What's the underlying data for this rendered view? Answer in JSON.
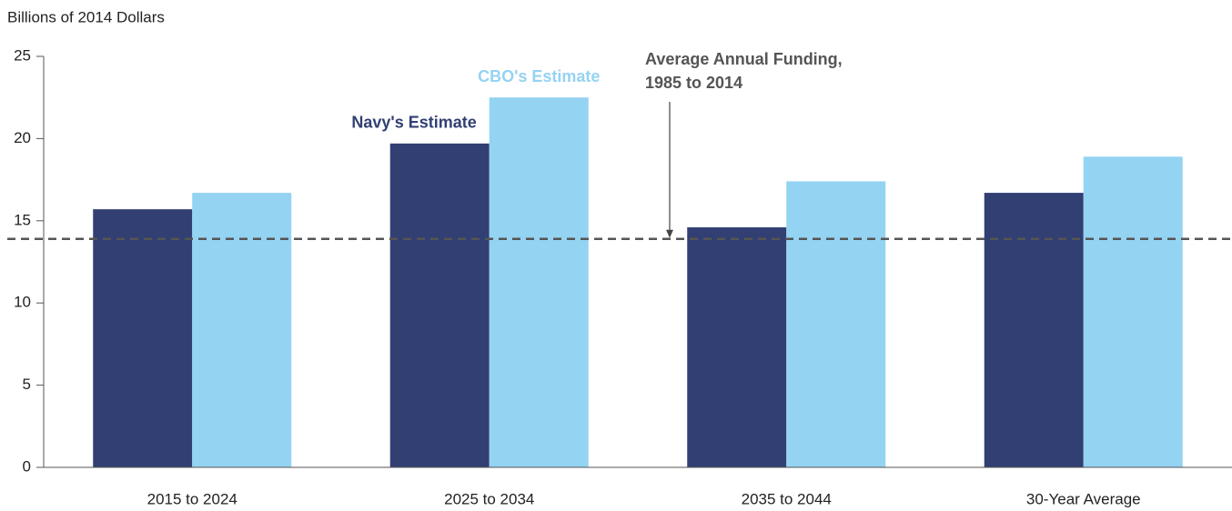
{
  "chart_data": {
    "type": "bar",
    "y_axis_label": "Billions of 2014 Dollars",
    "categories": [
      "2015 to 2024",
      "2025 to 2034",
      "2035 to 2044",
      "30-Year Average"
    ],
    "series": [
      {
        "name": "Navy's Estimate",
        "color": "#313f73",
        "values": [
          15.7,
          19.7,
          14.6,
          16.7
        ]
      },
      {
        "name": "CBO's Estimate",
        "color": "#94d3f2",
        "values": [
          16.7,
          22.5,
          17.4,
          18.9
        ]
      }
    ],
    "reference_line": {
      "value": 13.9,
      "color": "#555555",
      "label": [
        "Average Annual Funding,",
        "1985 to 2014"
      ]
    },
    "ylim": [
      0,
      25
    ],
    "yticks": [
      0,
      5,
      10,
      15,
      20,
      25
    ],
    "grid": false
  }
}
